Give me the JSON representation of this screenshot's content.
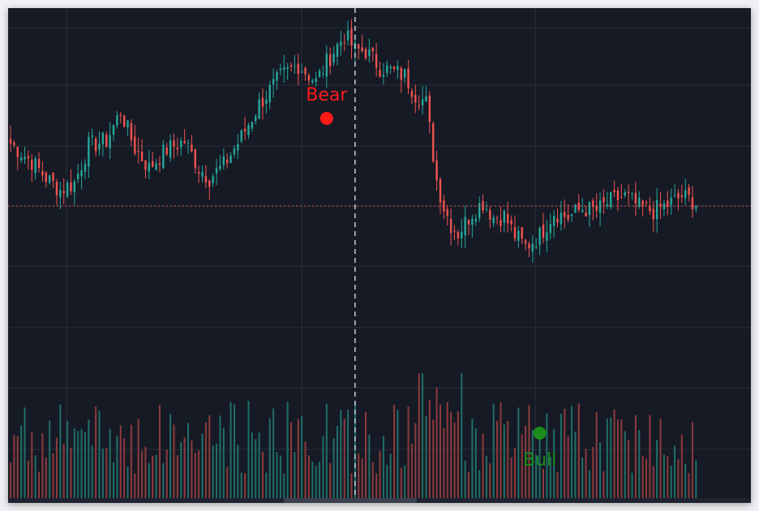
{
  "chart_data": {
    "type": "candlestick",
    "grid": true,
    "volume_bars": true,
    "price_range": [
      70,
      103
    ],
    "colors": {
      "background": "#161a25",
      "grid": "#2a2e39",
      "up": "#26a69a",
      "down": "#ef5350",
      "volume_up": "#1f6f68",
      "volume_down": "#8e3a3d",
      "crosshair": "#c8ccd4",
      "price_line": "#ef5350",
      "bear_marker": "#ff1a1a",
      "bull_marker": "#1a8c1a"
    },
    "close_anchors": [
      [
        0,
        92.0
      ],
      [
        6,
        90.5
      ],
      [
        10,
        89.2
      ],
      [
        14,
        88.2
      ],
      [
        18,
        88.8
      ],
      [
        22,
        91.8
      ],
      [
        27,
        92.2
      ],
      [
        31,
        94.6
      ],
      [
        35,
        91.6
      ],
      [
        39,
        90.0
      ],
      [
        44,
        91.5
      ],
      [
        49,
        92.2
      ],
      [
        53,
        90.0
      ],
      [
        56,
        89.2
      ],
      [
        60,
        90.2
      ],
      [
        65,
        92.5
      ],
      [
        70,
        95.2
      ],
      [
        76,
        97.4
      ],
      [
        81,
        98.4
      ],
      [
        86,
        97.0
      ],
      [
        90,
        99.1
      ],
      [
        94,
        100.8
      ],
      [
        97,
        99.6
      ],
      [
        100,
        99.5
      ],
      [
        104,
        98.2
      ],
      [
        108,
        97.8
      ],
      [
        111,
        97.5
      ],
      [
        114,
        96.0
      ],
      [
        117,
        95.3
      ],
      [
        120,
        89.0
      ],
      [
        122,
        86.8
      ],
      [
        124,
        85.4
      ],
      [
        126,
        84.7
      ],
      [
        130,
        86.4
      ],
      [
        133,
        87.2
      ],
      [
        136,
        86.0
      ],
      [
        139,
        86.1
      ],
      [
        142,
        84.5
      ],
      [
        145,
        83.6
      ],
      [
        149,
        84.5
      ],
      [
        153,
        86.4
      ],
      [
        157,
        86.0
      ],
      [
        161,
        86.7
      ],
      [
        165,
        86.5
      ],
      [
        169,
        87.3
      ],
      [
        173,
        87.7
      ],
      [
        177,
        86.8
      ],
      [
        181,
        86.5
      ],
      [
        185,
        87.0
      ],
      [
        189,
        87.7
      ],
      [
        193,
        87.2
      ]
    ],
    "last_price": 86.9,
    "annotations": [
      {
        "type": "marker",
        "text": "Bear",
        "position": "above",
        "index": 89
      },
      {
        "type": "marker",
        "text": "Bull",
        "position": "below",
        "index": 149
      }
    ],
    "crosshair_index": 97
  }
}
